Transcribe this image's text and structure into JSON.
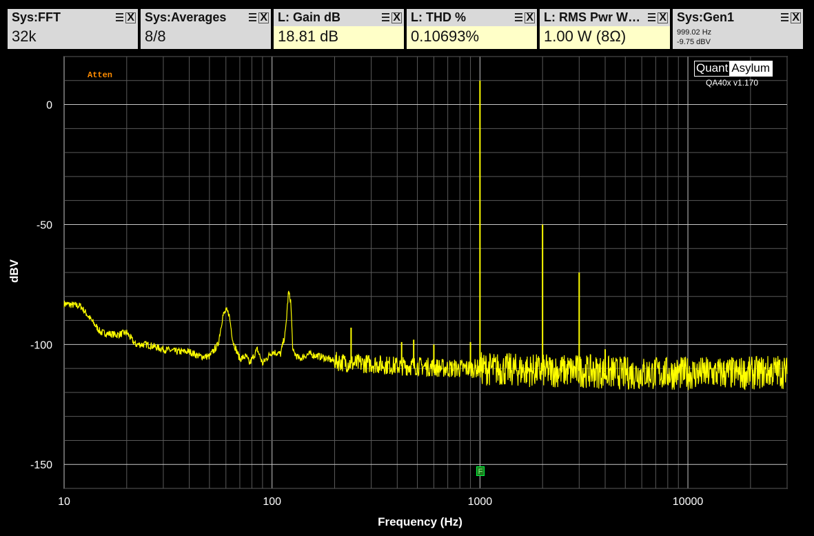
{
  "panels": [
    {
      "title": "Sys:FFT",
      "value": "32k",
      "highlight": false
    },
    {
      "title": "Sys:Averages",
      "value": "8/8",
      "highlight": false
    },
    {
      "title": "L: Gain dB",
      "value": "18.81 dB",
      "highlight": true
    },
    {
      "title": "L: THD %",
      "value": "0.10693%",
      "highlight": true
    },
    {
      "title": "L: RMS Pwr W…",
      "value": "1.00 W (8Ω)",
      "highlight": true
    },
    {
      "title": "Sys:Gen1",
      "line1": "999.02 Hz",
      "line2": "-9.75 dBV",
      "highlight": false
    }
  ],
  "atten_label": "Atten",
  "logo": {
    "left": "Quant",
    "right": "Asylum"
  },
  "version": "QA40x v1.170",
  "marker_label": "F",
  "chart_data": {
    "type": "line",
    "xlabel": "Frequency (Hz)",
    "ylabel": "dBV",
    "xscale": "log",
    "xlim": [
      10,
      30000
    ],
    "ylim": [
      -160,
      20
    ],
    "xticks": [
      10,
      100,
      1000,
      10000
    ],
    "xtick_labels": [
      "10",
      "100",
      "1000",
      "10000"
    ],
    "yticks": [
      0,
      -50,
      -100,
      -150
    ],
    "ytick_labels": [
      "0",
      "-50",
      "-100",
      "-150"
    ],
    "grid": true,
    "line_color": "#ffff00",
    "noise_floor": [
      [
        10,
        -83
      ],
      [
        12,
        -84
      ],
      [
        15,
        -95
      ],
      [
        18,
        -96
      ],
      [
        20,
        -95
      ],
      [
        22,
        -100
      ],
      [
        25,
        -100
      ],
      [
        30,
        -102
      ],
      [
        35,
        -103
      ],
      [
        40,
        -103
      ],
      [
        45,
        -105
      ],
      [
        50,
        -105
      ],
      [
        55,
        -100
      ],
      [
        58,
        -88
      ],
      [
        60,
        -86
      ],
      [
        62,
        -87
      ],
      [
        65,
        -99
      ],
      [
        70,
        -106
      ],
      [
        75,
        -105
      ],
      [
        78,
        -108
      ],
      [
        85,
        -102
      ],
      [
        90,
        -108
      ],
      [
        100,
        -103
      ],
      [
        110,
        -104
      ],
      [
        116,
        -95
      ],
      [
        120,
        -78
      ],
      [
        123,
        -82
      ],
      [
        126,
        -103
      ],
      [
        135,
        -106
      ],
      [
        150,
        -104
      ],
      [
        170,
        -105
      ],
      [
        200,
        -107
      ],
      [
        250,
        -108
      ],
      [
        300,
        -108
      ],
      [
        400,
        -109
      ],
      [
        500,
        -109
      ],
      [
        700,
        -110
      ],
      [
        1000,
        -110
      ],
      [
        2000,
        -111
      ],
      [
        3000,
        -111
      ],
      [
        5000,
        -112
      ],
      [
        10000,
        -112
      ],
      [
        20000,
        -112
      ],
      [
        27000,
        -111
      ],
      [
        30000,
        -112
      ]
    ],
    "peaks": [
      [
        240,
        -93
      ],
      [
        420,
        -99
      ],
      [
        480,
        -98
      ],
      [
        600,
        -100
      ],
      [
        900,
        -99
      ],
      [
        1000,
        10
      ],
      [
        2000,
        -50
      ],
      [
        3000,
        -70
      ],
      [
        4000,
        -102
      ]
    ]
  }
}
